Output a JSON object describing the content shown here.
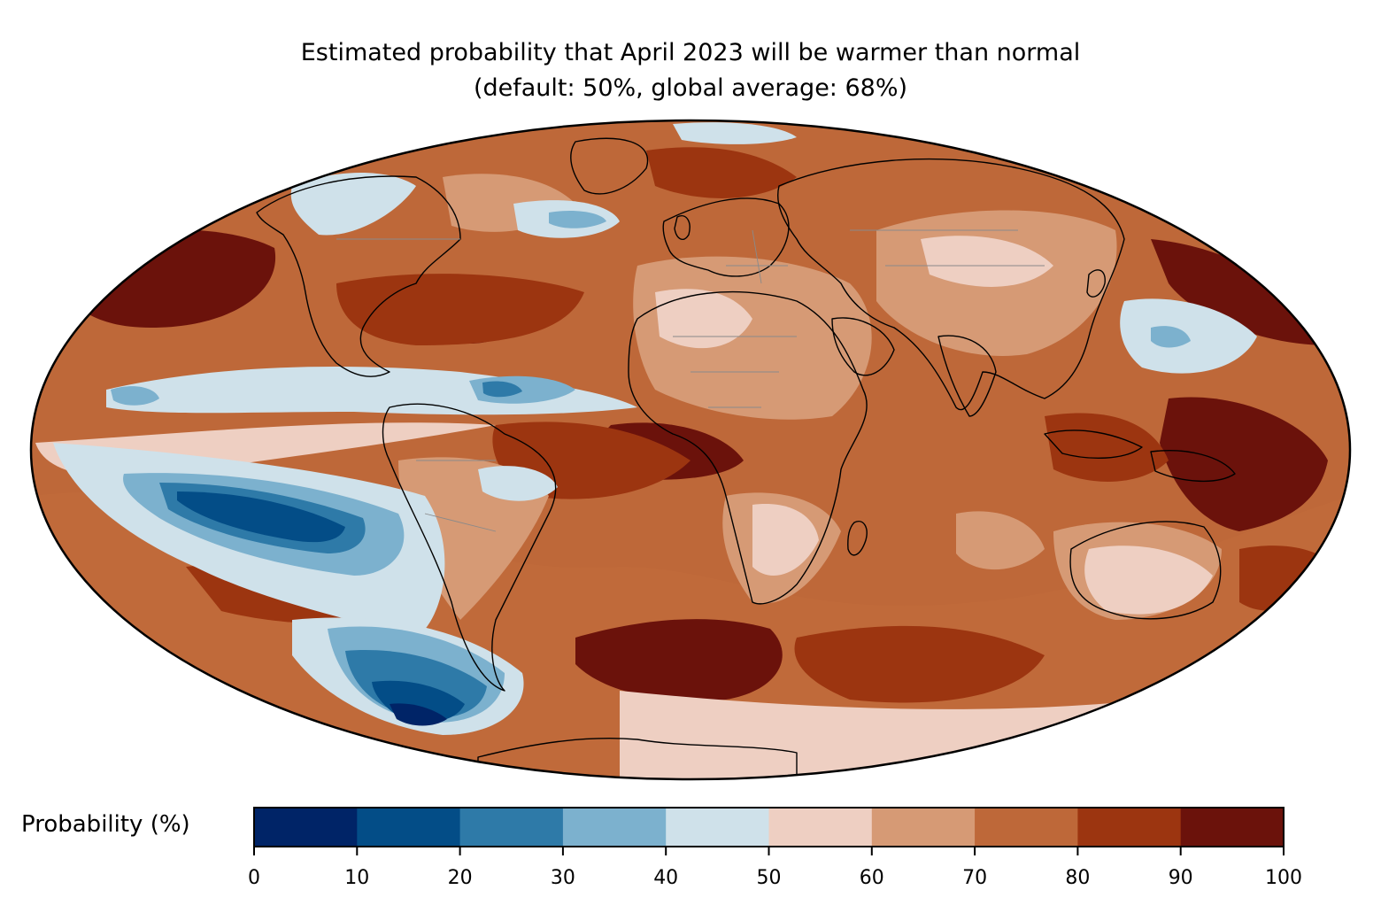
{
  "title": {
    "line1": "Estimated probability that April 2023 will be warmer than normal",
    "line2": "(default: 50%, global average: 68%)"
  },
  "map": {
    "projection": "Mollweide",
    "variable": "probability of warmer than normal",
    "colors": {
      "very_low": "#002467",
      "low": "#034d87",
      "low_mid": "#2e7aa8",
      "mid_low": "#7cb1ce",
      "near_normal_cool": "#cfe1ea",
      "near_normal_warm": "#eecfc2",
      "mid_high": "#d69a75",
      "high_mid": "#be6839",
      "high": "#9c3510",
      "very_high": "#6b120b",
      "coastline": "#000000",
      "borders": "#8a8a8a"
    }
  },
  "colorbar": {
    "label": "Probability (%)",
    "ticks": [
      "0",
      "10",
      "20",
      "30",
      "40",
      "50",
      "60",
      "70",
      "80",
      "90",
      "100"
    ],
    "bins": [
      {
        "range": [
          0,
          10
        ],
        "color": "#002467"
      },
      {
        "range": [
          10,
          20
        ],
        "color": "#034d87"
      },
      {
        "range": [
          20,
          30
        ],
        "color": "#2e7aa8"
      },
      {
        "range": [
          30,
          40
        ],
        "color": "#7cb1ce"
      },
      {
        "range": [
          40,
          50
        ],
        "color": "#cfe1ea"
      },
      {
        "range": [
          50,
          60
        ],
        "color": "#eecfc2"
      },
      {
        "range": [
          60,
          70
        ],
        "color": "#d69a75"
      },
      {
        "range": [
          70,
          80
        ],
        "color": "#be6839"
      },
      {
        "range": [
          80,
          90
        ],
        "color": "#9c3510"
      },
      {
        "range": [
          90,
          100
        ],
        "color": "#6b120b"
      }
    ]
  }
}
